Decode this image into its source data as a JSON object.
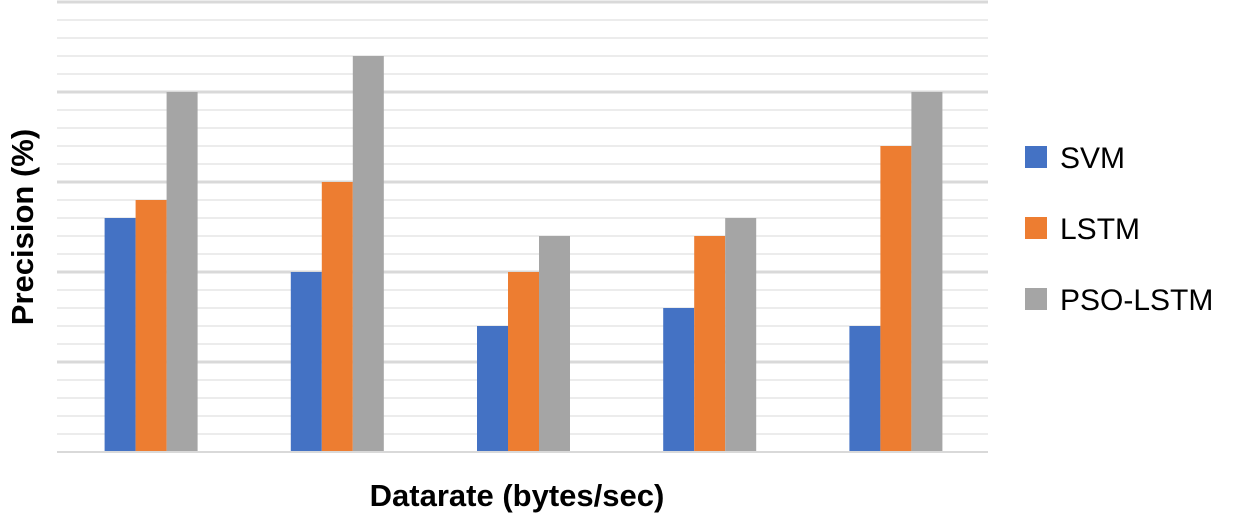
{
  "chart_data": {
    "type": "bar",
    "title": "",
    "xlabel": "Datarate (bytes/sec)",
    "ylabel": "Precision (%)",
    "categories": [
      "",
      "",
      "",
      "",
      ""
    ],
    "ylim": [
      0,
      25
    ],
    "grid": true,
    "legend_position": "right",
    "series": [
      {
        "name": "SVM",
        "color": "#4472C4",
        "values": [
          13,
          10,
          7,
          8,
          7
        ]
      },
      {
        "name": "LSTM",
        "color": "#ED7D31",
        "values": [
          14,
          15,
          10,
          12,
          17
        ]
      },
      {
        "name": "PSO-LSTM",
        "color": "#A5A5A5",
        "values": [
          20,
          22,
          12,
          13,
          20
        ]
      }
    ]
  }
}
